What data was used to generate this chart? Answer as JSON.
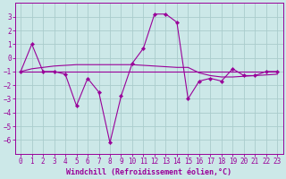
{
  "x": [
    0,
    1,
    2,
    3,
    4,
    5,
    6,
    7,
    8,
    9,
    10,
    11,
    12,
    13,
    14,
    15,
    16,
    17,
    18,
    19,
    20,
    21,
    22,
    23
  ],
  "y_main": [
    -1,
    1,
    -1,
    -1,
    -1.2,
    -3.5,
    -1.5,
    -2.5,
    -6.2,
    -2.8,
    -0.4,
    0.7,
    3.2,
    3.2,
    2.6,
    -3.0,
    -1.7,
    -1.5,
    -1.7,
    -0.8,
    -1.3,
    -1.3,
    -1.0,
    -1.0
  ],
  "y_flat": [
    -1,
    -1,
    -1,
    -1,
    -1,
    -1,
    -1,
    -1,
    -1,
    -1,
    -1,
    -1,
    -1,
    -1,
    -1,
    -1,
    -1,
    -1,
    -1,
    -1,
    -1,
    -1,
    -1,
    -1
  ],
  "y_diag": [
    -1,
    -0.8,
    -0.7,
    -0.6,
    -0.55,
    -0.5,
    -0.5,
    -0.5,
    -0.5,
    -0.5,
    -0.5,
    -0.55,
    -0.6,
    -0.65,
    -0.7,
    -0.7,
    -1.1,
    -1.3,
    -1.4,
    -1.4,
    -1.35,
    -1.3,
    -1.25,
    -1.2
  ],
  "line_color": "#990099",
  "bg_color": "#cce8e8",
  "grid_color": "#aacccc",
  "xlabel": "Windchill (Refroidissement éolien,°C)",
  "ylim": [
    -7,
    4
  ],
  "xlim": [
    -0.5,
    23.5
  ],
  "yticks": [
    -6,
    -5,
    -4,
    -3,
    -2,
    -1,
    0,
    1,
    2,
    3
  ],
  "xticks": [
    0,
    1,
    2,
    3,
    4,
    5,
    6,
    7,
    8,
    9,
    10,
    11,
    12,
    13,
    14,
    15,
    16,
    17,
    18,
    19,
    20,
    21,
    22,
    23
  ],
  "tick_fontsize": 5.5,
  "xlabel_fontsize": 6.0
}
